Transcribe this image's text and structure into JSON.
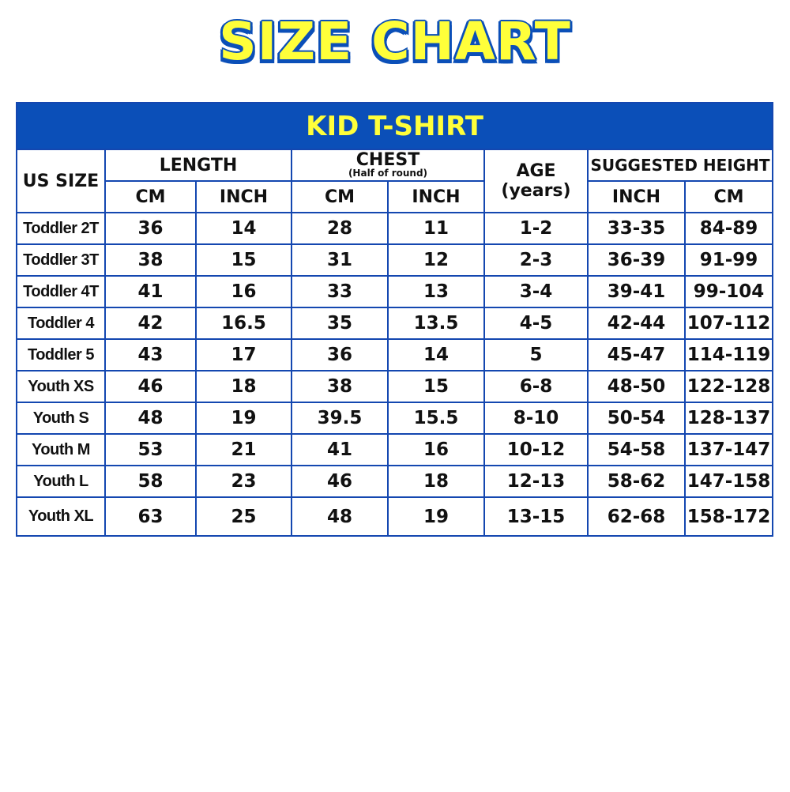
{
  "title": "SIZE CHART",
  "table_title": "KID T-SHIRT",
  "colors": {
    "brand_blue": "#0b4fb8",
    "title_yellow": "#ffff3a"
  },
  "headers": {
    "us_size": "US SIZE",
    "length": "LENGTH",
    "chest": "CHEST",
    "chest_note": "(Half of round)",
    "age": "AGE",
    "age_unit": "(years)",
    "suggested_height": "SUGGESTED HEIGHT",
    "length_cm": "CM",
    "length_inch": "INCH",
    "chest_cm": "CM",
    "chest_inch": "INCH",
    "height_inch": "INCH",
    "height_cm": "CM"
  },
  "rows": [
    [
      "Toddler 2T",
      "36",
      "14",
      "28",
      "11",
      "1-2",
      "33-35",
      "84-89"
    ],
    [
      "Toddler 3T",
      "38",
      "15",
      "31",
      "12",
      "2-3",
      "36-39",
      "91-99"
    ],
    [
      "Toddler 4T",
      "41",
      "16",
      "33",
      "13",
      "3-4",
      "39-41",
      "99-104"
    ],
    [
      "Toddler 4",
      "42",
      "16.5",
      "35",
      "13.5",
      "4-5",
      "42-44",
      "107-112"
    ],
    [
      "Toddler 5",
      "43",
      "17",
      "36",
      "14",
      "5",
      "45-47",
      "114-119"
    ],
    [
      "Youth XS",
      "46",
      "18",
      "38",
      "15",
      "6-8",
      "48-50",
      "122-128"
    ],
    [
      "Youth S",
      "48",
      "19",
      "39.5",
      "15.5",
      "8-10",
      "50-54",
      "128-137"
    ],
    [
      "Youth M",
      "53",
      "21",
      "41",
      "16",
      "10-12",
      "54-58",
      "137-147"
    ],
    [
      "Youth L",
      "58",
      "23",
      "46",
      "18",
      "12-13",
      "58-62",
      "147-158"
    ],
    [
      "Youth XL",
      "63",
      "25",
      "48",
      "19",
      "13-15",
      "62-68",
      "158-172"
    ]
  ]
}
